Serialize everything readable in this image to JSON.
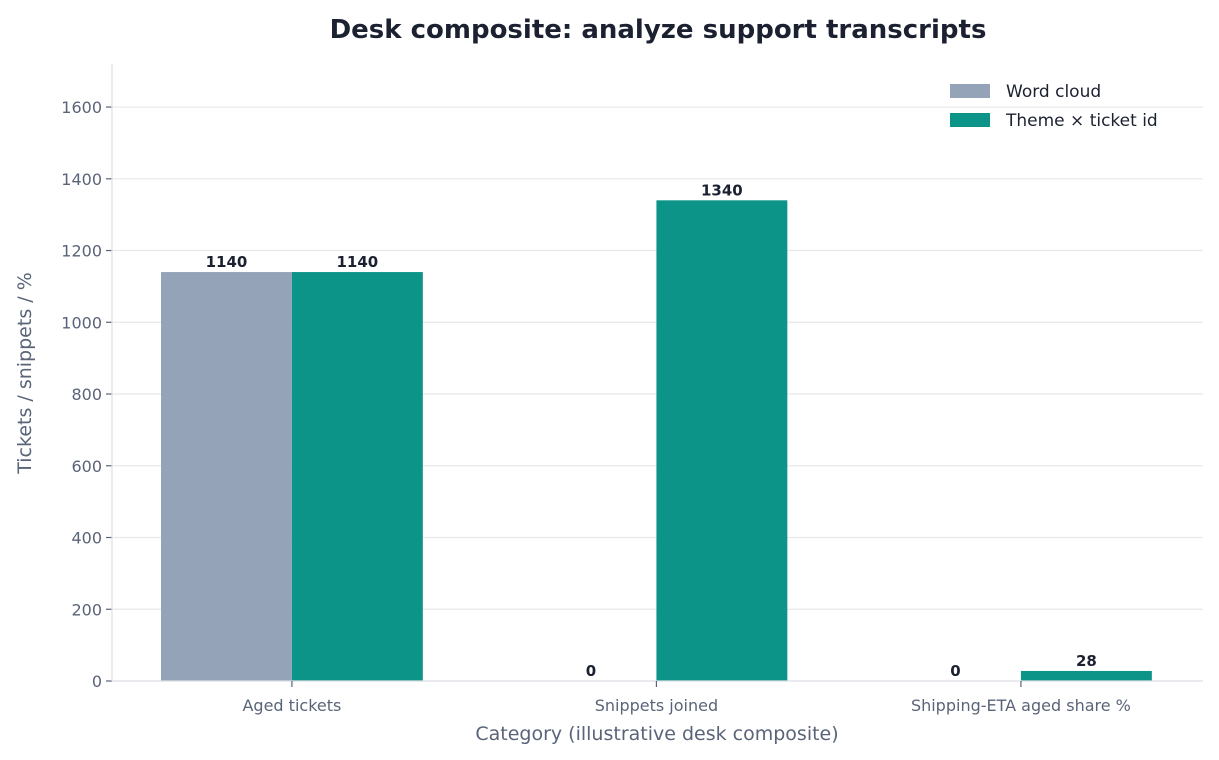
{
  "chart_data": {
    "type": "bar",
    "title": "Desk composite: analyze support transcripts",
    "xlabel": "Category (illustrative desk composite)",
    "ylabel": "Tickets / snippets / %",
    "categories": [
      "Aged tickets",
      "Snippets joined",
      "Shipping-ETA aged share %"
    ],
    "series": [
      {
        "name": "Word cloud",
        "values": [
          1140,
          0,
          0
        ],
        "color": "#94a3b8"
      },
      {
        "name": "Theme × ticket id",
        "values": [
          1140,
          1340,
          28
        ],
        "color": "#0d9488"
      }
    ],
    "ylim": [
      0,
      1720
    ],
    "yticks": [
      0,
      200,
      400,
      600,
      800,
      1000,
      1200,
      1400,
      1600
    ],
    "grid": true,
    "legend_position": "top-right"
  }
}
